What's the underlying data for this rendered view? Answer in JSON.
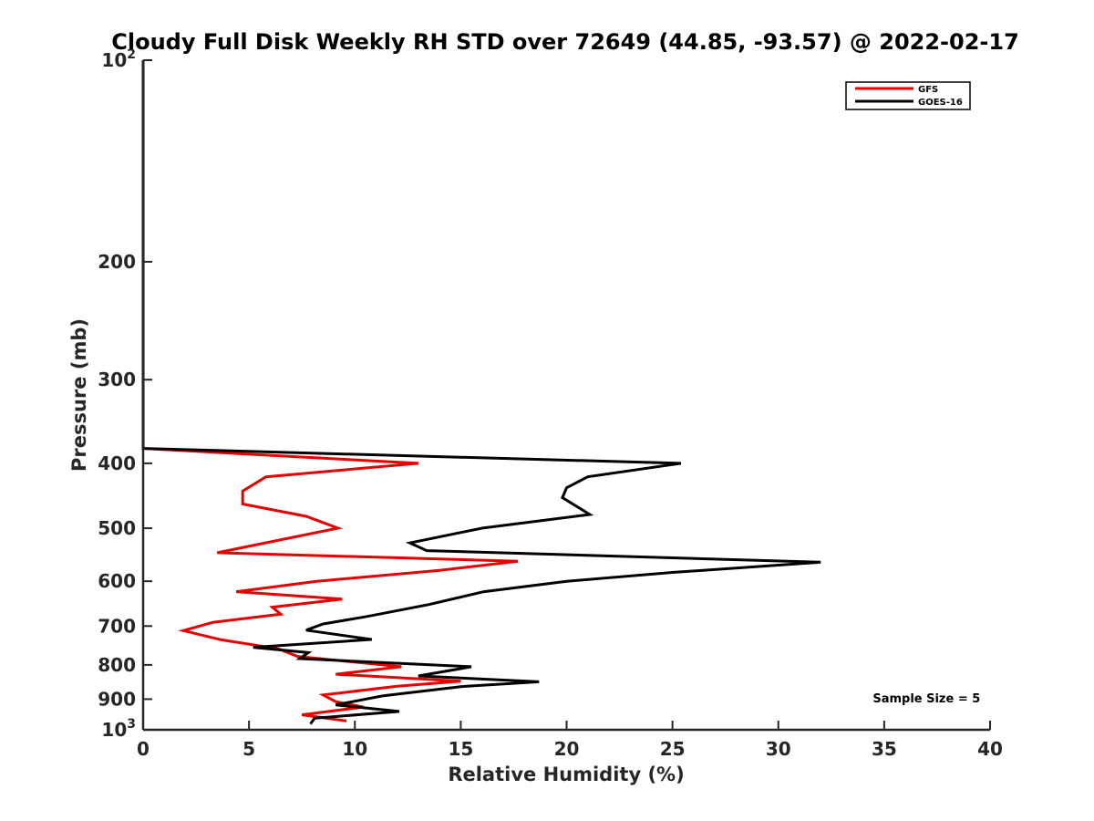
{
  "chart_data": {
    "type": "line",
    "title": "Cloudy Full Disk Weekly RH STD over 72649 (44.85, -93.57) @ 2022-02-17",
    "xlabel": "Relative Humidity (%)",
    "ylabel": "Pressure (mb)",
    "xlim": [
      0,
      40
    ],
    "ylim": [
      100,
      1000
    ],
    "y_scale": "log",
    "y_reversed": false,
    "x_ticks": [
      "0",
      "5",
      "10",
      "15",
      "20",
      "25",
      "30",
      "35",
      "40"
    ],
    "y_ticks": [
      {
        "value": 100,
        "base": "10",
        "exp": "2"
      },
      {
        "value": 200,
        "label": "200"
      },
      {
        "value": 300,
        "label": "300"
      },
      {
        "value": 400,
        "label": "400"
      },
      {
        "value": 500,
        "label": "500"
      },
      {
        "value": 600,
        "label": "600"
      },
      {
        "value": 700,
        "label": "700"
      },
      {
        "value": 800,
        "label": "800"
      },
      {
        "value": 900,
        "label": "900"
      },
      {
        "value": 1000,
        "base": "10",
        "exp": "3"
      }
    ],
    "legend_position": "top-right",
    "series": [
      {
        "name": "GFS",
        "color": "#e60000",
        "points": [
          [
            0,
            100
          ],
          [
            0,
            380
          ],
          [
            13.0,
            400
          ],
          [
            5.8,
            419
          ],
          [
            4.7,
            440
          ],
          [
            4.7,
            460
          ],
          [
            7.7,
            480
          ],
          [
            9.2,
            500
          ],
          [
            3.5,
            544
          ],
          [
            17.7,
            560
          ],
          [
            14.0,
            578
          ],
          [
            8.2,
            600
          ],
          [
            4.4,
            622
          ],
          [
            9.4,
            638
          ],
          [
            6.1,
            656
          ],
          [
            6.5,
            672
          ],
          [
            3.3,
            691
          ],
          [
            1.9,
            711
          ],
          [
            3.7,
            734
          ],
          [
            6.4,
            757
          ],
          [
            7.3,
            777
          ],
          [
            12.2,
            805
          ],
          [
            9.1,
            826
          ],
          [
            15.0,
            846
          ],
          [
            12.0,
            861
          ],
          [
            8.5,
            887
          ],
          [
            9.1,
            908
          ],
          [
            10.4,
            925
          ],
          [
            7.5,
            950
          ],
          [
            9.6,
            970
          ]
        ]
      },
      {
        "name": "GOES-16",
        "color": "#000000",
        "points": [
          [
            0,
            100
          ],
          [
            0,
            380
          ],
          [
            25.4,
            400
          ],
          [
            21.0,
            419
          ],
          [
            20.0,
            435
          ],
          [
            19.8,
            450
          ],
          [
            21.1,
            477
          ],
          [
            16.0,
            500
          ],
          [
            12.6,
            526
          ],
          [
            13.4,
            540
          ],
          [
            32.0,
            562
          ],
          [
            25.0,
            582
          ],
          [
            20.0,
            600
          ],
          [
            16.1,
            622
          ],
          [
            13.5,
            650
          ],
          [
            10.6,
            677
          ],
          [
            8.5,
            695
          ],
          [
            7.7,
            710
          ],
          [
            10.8,
            733
          ],
          [
            5.2,
            753
          ],
          [
            7.8,
            767
          ],
          [
            7.4,
            783
          ],
          [
            15.5,
            805
          ],
          [
            13.0,
            831
          ],
          [
            18.7,
            848
          ],
          [
            15.0,
            862
          ],
          [
            11.3,
            890
          ],
          [
            9.1,
            918
          ],
          [
            12.1,
            939
          ],
          [
            8.1,
            961
          ],
          [
            7.9,
            980
          ]
        ]
      }
    ],
    "annotations": [
      {
        "text": "Sample Size = 5",
        "x": 37,
        "y": 910
      }
    ]
  }
}
